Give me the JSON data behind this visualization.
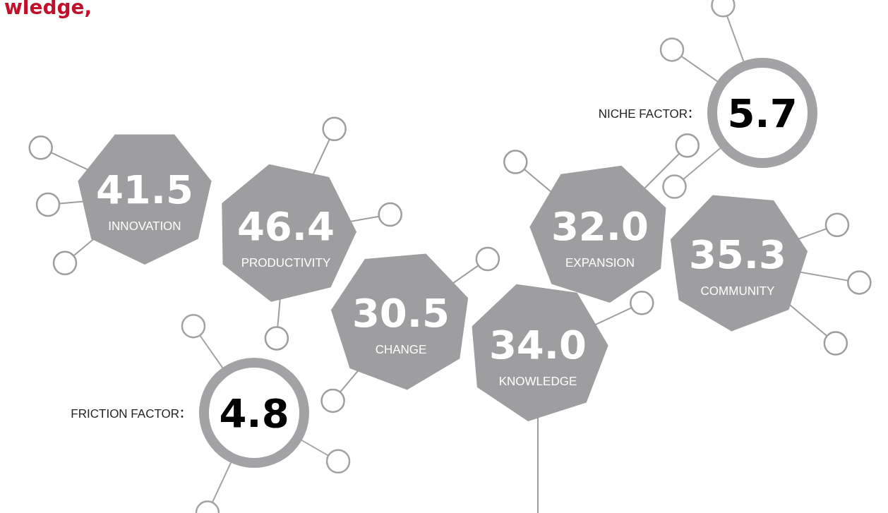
{
  "chart_data": {
    "type": "other",
    "title": "wledge,",
    "data_labels": true,
    "categories": [
      "INNOVATION",
      "PRODUCTIVITY",
      "CHANGE",
      "KNOWLEDGE",
      "EXPANSION",
      "COMMUNITY",
      "FRICTION FACTOR",
      "NICHE FACTOR"
    ],
    "series": [
      {
        "color": "#9e9d9f",
        "values": [
          41.5,
          46.4,
          30.5,
          null,
          null,
          35.3,
          null,
          null
        ]
      },
      {
        "color": "#a3a2a4",
        "values": [
          null,
          null,
          null,
          null,
          null,
          null,
          4.8,
          5.7
        ]
      },
      {
        "color": "#9e9d9f",
        "values": [
          null,
          null,
          null,
          34.0,
          32.0,
          null,
          null,
          null
        ],
        "value_labels": [
          null,
          null,
          null,
          "34.0",
          "32.0",
          null,
          null,
          null
        ]
      }
    ]
  }
}
